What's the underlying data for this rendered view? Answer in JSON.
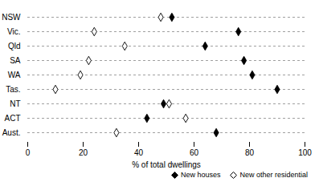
{
  "chart_data": {
    "type": "dot",
    "orientation": "horizontal",
    "categories": [
      "NSW",
      "Vic.",
      "Qld",
      "SA",
      "WA",
      "Tas.",
      "NT",
      "ACT",
      "Aust."
    ],
    "series": [
      {
        "name": "New houses",
        "color": "#000000",
        "marker": "diamond-filled",
        "values": [
          52,
          76,
          64,
          78,
          81,
          90,
          49,
          43,
          68
        ]
      },
      {
        "name": "New other residential",
        "color": "#000000",
        "marker": "diamond-open",
        "values": [
          48,
          24,
          35,
          22,
          19,
          10,
          51,
          57,
          32
        ]
      }
    ],
    "x_label": "% of total dwellings",
    "xlim": [
      0,
      100
    ],
    "xticks": [
      0,
      20,
      40,
      60,
      80,
      100
    ],
    "grid": true,
    "legend": "bottom-right"
  }
}
